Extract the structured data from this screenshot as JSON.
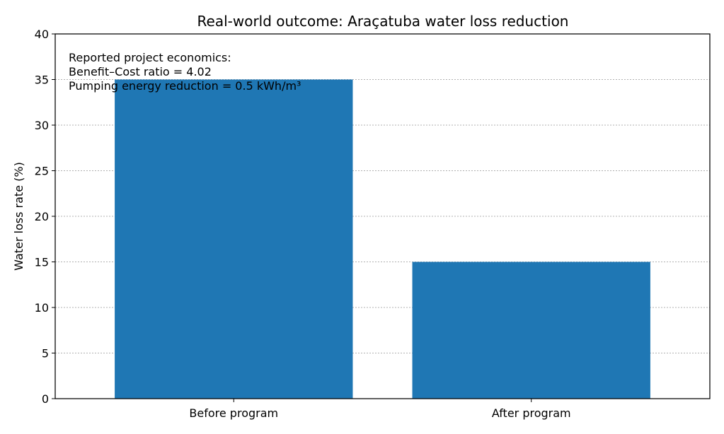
{
  "chart_data": {
    "type": "bar",
    "title": "Real-world outcome: Araçatuba water loss reduction",
    "xlabel": "",
    "ylabel": "Water loss rate (%)",
    "categories": [
      "Before program",
      "After program"
    ],
    "values": [
      35,
      15
    ],
    "ylim": [
      0,
      40
    ],
    "yticks": [
      "0",
      "5",
      "10",
      "15",
      "20",
      "25",
      "30",
      "35",
      "40"
    ],
    "grid": "y-dotted",
    "bar_color": "#1f77b4",
    "annotation": [
      "Reported project economics:",
      "Benefit–Cost ratio = 4.02",
      "Pumping energy reduction = 0.5 kWh/m³"
    ]
  }
}
